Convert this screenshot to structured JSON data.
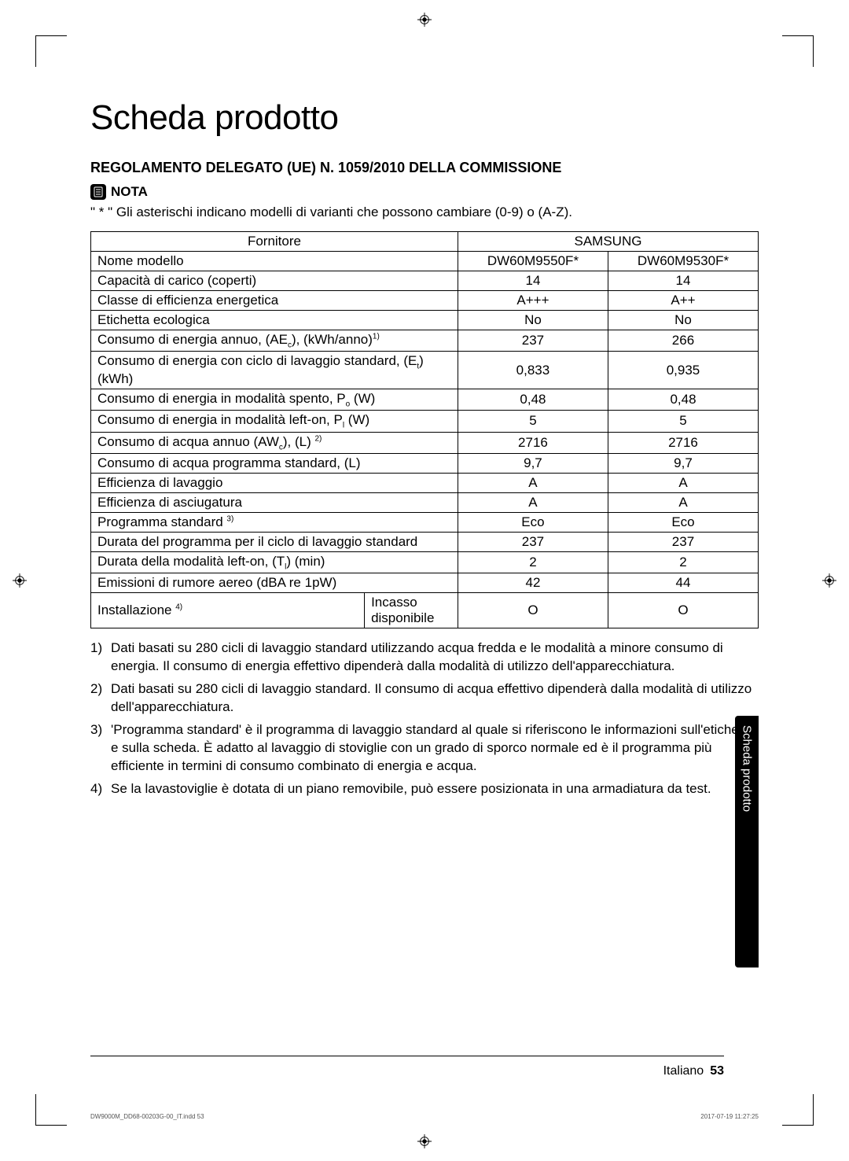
{
  "page": {
    "title": "Scheda prodotto",
    "subtitle": "REGOLAMENTO DELEGATO (UE) N. 1059/2010 DELLA COMMISSIONE",
    "nota_label": "NOTA",
    "nota_text": "\" * \" Gli asterischi indicano modelli di varianti che possono cambiare (0-9) o (A-Z).",
    "side_tab": "Scheda prodotto",
    "footer_lang": "Italiano",
    "footer_page": "53",
    "print_left": "DW9000M_DD68-00203G-00_IT.indd   53",
    "print_right": "2017-07-19   11:27:25"
  },
  "table": {
    "supplier_label": "Fornitore",
    "supplier_value": "SAMSUNG",
    "model_label": "Nome modello",
    "model_a": "DW60M9550F*",
    "model_b": "DW60M9530F*",
    "rows": [
      {
        "label": "Capacità di carico (coperti)",
        "a": "14",
        "b": "14"
      },
      {
        "label": "Classe di efficienza energetica",
        "a": "A+++",
        "b": "A++"
      },
      {
        "label": "Etichetta ecologica",
        "a": "No",
        "b": "No"
      },
      {
        "label_html": "Consumo di energia annuo, (AE<span class='sub'>c</span>), (kWh/anno)<span class='sup'>1)</span>",
        "a": "237",
        "b": "266"
      },
      {
        "label_html": "Consumo di energia con ciclo di lavaggio standard, (E<span class='sub'>t</span>) (kWh)",
        "a": "0,833",
        "b": "0,935"
      },
      {
        "label_html": "Consumo di energia in modalità spento, P<span class='sub'>o</span> (W)",
        "a": "0,48",
        "b": "0,48"
      },
      {
        "label_html": "Consumo di energia in modalità left-on, P<span class='sub'>l</span> (W)",
        "a": "5",
        "b": "5"
      },
      {
        "label_html": "Consumo di acqua annuo (AW<span class='sub'>c</span>), (L) <span class='sup'>2)</span>",
        "a": "2716",
        "b": "2716"
      },
      {
        "label": "Consumo di acqua programma standard, (L)",
        "a": "9,7",
        "b": "9,7"
      },
      {
        "label": "Efficienza di lavaggio",
        "a": "A",
        "b": "A"
      },
      {
        "label": "Efficienza di asciugatura",
        "a": "A",
        "b": "A"
      },
      {
        "label_html": "Programma standard <span class='sup'>3)</span>",
        "a": "Eco",
        "b": "Eco"
      },
      {
        "label": "Durata del programma per il ciclo di lavaggio standard",
        "a": "237",
        "b": "237"
      },
      {
        "label_html": "Durata della modalità left-on, (T<span class='sub'>l</span>) (min)",
        "a": "2",
        "b": "2"
      },
      {
        "label": "Emissioni di rumore aereo (dBA re 1pW)",
        "a": "42",
        "b": "44"
      }
    ],
    "install_label_html": "Installazione <span class='sup'>4)</span>",
    "install_sub": "Incasso disponibile",
    "install_a": "O",
    "install_b": "O"
  },
  "footnotes": [
    "Dati basati su 280 cicli di lavaggio standard utilizzando acqua fredda e le modalità a minore consumo di energia. Il consumo di energia effettivo dipenderà dalla modalità di utilizzo dell'apparecchiatura.",
    "Dati basati su 280 cicli di lavaggio standard. Il consumo di acqua effettivo dipenderà dalla modalità di utilizzo dell'apparecchiatura.",
    "'Programma standard' è il programma di lavaggio standard al quale si riferiscono le informazioni sull'etichetta e sulla scheda. È adatto al lavaggio di stoviglie con un grado di sporco normale ed è il programma più efficiente in termini di consumo combinato di energia e acqua.",
    "Se la lavastoviglie è dotata di un piano removibile, può essere posizionata in una armadiatura da test."
  ]
}
